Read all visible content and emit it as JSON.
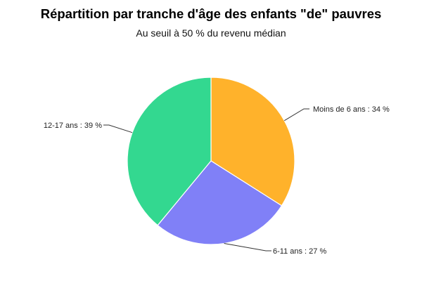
{
  "chart": {
    "title": "Répartition par tranche d'âge des enfants \"de\" pauvres",
    "subtitle": "Au seuil à 50 % du revenu médian"
  },
  "chart_data": {
    "type": "pie",
    "title": "Répartition par tranche d'âge des enfants \"de\" pauvres",
    "subtitle": "Au seuil à 50 % du revenu médian",
    "slices": [
      {
        "label": "Moins de 6 ans",
        "value": 34,
        "display": "Moins de 6 ans : 34 %",
        "color": "#FFB22B"
      },
      {
        "label": "6-11 ans",
        "value": 27,
        "display": "6-11 ans : 27 %",
        "color": "#8080F7"
      },
      {
        "label": "12-17 ans",
        "value": 39,
        "display": "12-17 ans : 39 %",
        "color": "#33D890"
      }
    ]
  }
}
